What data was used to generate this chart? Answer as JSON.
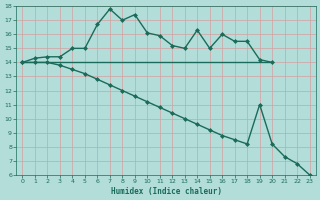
{
  "line1_x": [
    0,
    1,
    2,
    3,
    4,
    5,
    6,
    7,
    8,
    9,
    10,
    11,
    12,
    13,
    14,
    15,
    16,
    17,
    18,
    19,
    20
  ],
  "line1_y": [
    14.0,
    14.3,
    14.4,
    14.4,
    15.0,
    15.0,
    16.7,
    17.8,
    17.0,
    17.4,
    16.1,
    15.9,
    15.2,
    15.0,
    16.3,
    15.0,
    16.0,
    15.5,
    15.5,
    14.2,
    14.0
  ],
  "line2_x": [
    0,
    1,
    2,
    3,
    4,
    5,
    6,
    7,
    8,
    9,
    10,
    11,
    12,
    13,
    14,
    15,
    16,
    17,
    18,
    19,
    20
  ],
  "line2_y": [
    14.0,
    14.0,
    14.0,
    14.0,
    14.0,
    14.0,
    14.0,
    14.0,
    14.0,
    14.0,
    14.0,
    14.0,
    14.0,
    14.0,
    14.0,
    14.0,
    14.0,
    14.0,
    14.0,
    14.0,
    14.0
  ],
  "line3_x": [
    0,
    1,
    2,
    3,
    4,
    5,
    6,
    7,
    8,
    9,
    10,
    11,
    12,
    13,
    14,
    15,
    16,
    17,
    18,
    19,
    20,
    21,
    22,
    23
  ],
  "line3_y": [
    14.0,
    14.0,
    14.0,
    13.8,
    13.5,
    13.2,
    12.8,
    12.4,
    12.0,
    11.6,
    11.2,
    10.8,
    10.4,
    10.0,
    9.6,
    9.2,
    8.8,
    8.5,
    8.2,
    11.0,
    8.2,
    7.3,
    6.8,
    6.0
  ],
  "color": "#1a6b5a",
  "bg_color": "#b3ddd8",
  "grid_color": "#d0ebe6",
  "xlabel": "Humidex (Indice chaleur)",
  "ylim": [
    6,
    18
  ],
  "xlim": [
    -0.5,
    23.5
  ],
  "yticks": [
    6,
    7,
    8,
    9,
    10,
    11,
    12,
    13,
    14,
    15,
    16,
    17,
    18
  ],
  "xticks": [
    0,
    1,
    2,
    3,
    4,
    5,
    6,
    7,
    8,
    9,
    10,
    11,
    12,
    13,
    14,
    15,
    16,
    17,
    18,
    19,
    20,
    21,
    22,
    23
  ],
  "marker": "D",
  "marker_size": 2.0,
  "line_width": 1.0
}
